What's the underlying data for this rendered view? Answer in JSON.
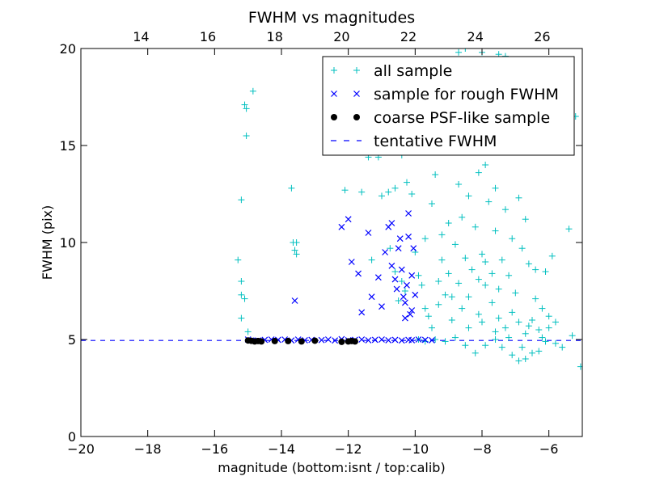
{
  "chart_data": {
    "type": "scatter",
    "title": "FWHM vs magnitudes",
    "xlabel": "magnitude (bottom:isnt / top:calib)",
    "ylabel": "FWHM (pix)",
    "xlim": [
      -20,
      -5
    ],
    "ylim": [
      0,
      20
    ],
    "top_xlim": [
      12.2,
      27.2
    ],
    "x_ticks": [
      -20,
      -18,
      -16,
      -14,
      -12,
      -10,
      -8,
      -6
    ],
    "x_tick_labels": [
      "−20",
      "−18",
      "−16",
      "−14",
      "−12",
      "−10",
      "−8",
      "−6"
    ],
    "top_x_ticks": [
      14,
      16,
      18,
      20,
      22,
      24,
      26
    ],
    "top_x_tick_labels": [
      "14",
      "16",
      "18",
      "20",
      "22",
      "24",
      "26"
    ],
    "y_ticks": [
      0,
      5,
      10,
      15,
      20
    ],
    "y_tick_labels": [
      "0",
      "5",
      "10",
      "15",
      "20"
    ],
    "grid": false,
    "legend_position": "top-right",
    "colors": {
      "all_sample": "#00bfbf",
      "rough_sample": "#0000ff",
      "psf_sample": "#000000",
      "tentative_line": "#0000ff"
    },
    "legend": [
      {
        "key": "all",
        "label": "all sample",
        "marker": "plus"
      },
      {
        "key": "rough",
        "label": "sample for rough FWHM",
        "marker": "x"
      },
      {
        "key": "psf",
        "label": "coarse PSF-like sample",
        "marker": "dot"
      },
      {
        "key": "line",
        "label": "tentative FWHM",
        "marker": "dash"
      }
    ],
    "tentative_fwhm": 4.95,
    "series": [
      {
        "name": "all sample",
        "marker": "plus",
        "points": [
          [
            -15.3,
            9.1
          ],
          [
            -15.2,
            8.0
          ],
          [
            -15.2,
            7.3
          ],
          [
            -15.1,
            7.1
          ],
          [
            -15.2,
            6.1
          ],
          [
            -15.0,
            5.4
          ],
          [
            -15.1,
            17.1
          ],
          [
            -15.05,
            16.9
          ],
          [
            -15.05,
            15.5
          ],
          [
            -14.85,
            17.8
          ],
          [
            -15.2,
            12.2
          ],
          [
            -13.7,
            12.8
          ],
          [
            -13.65,
            10.0
          ],
          [
            -13.55,
            10.0
          ],
          [
            -13.6,
            9.6
          ],
          [
            -13.55,
            9.4
          ],
          [
            -12.1,
            12.7
          ],
          [
            -11.6,
            12.6
          ],
          [
            -11.4,
            14.4
          ],
          [
            -11.3,
            9.1
          ],
          [
            -11.1,
            14.4
          ],
          [
            -11.0,
            12.4
          ],
          [
            -10.8,
            12.6
          ],
          [
            -10.75,
            9.7
          ],
          [
            -10.6,
            12.8
          ],
          [
            -10.4,
            14.5
          ],
          [
            -10.25,
            13.1
          ],
          [
            -10.1,
            12.5
          ],
          [
            -10.4,
            8.0
          ],
          [
            -10.3,
            7.5
          ],
          [
            -10.5,
            7.0
          ],
          [
            -10.6,
            8.5
          ],
          [
            -10.0,
            9.5
          ],
          [
            -9.9,
            8.3
          ],
          [
            -9.8,
            7.8
          ],
          [
            -9.7,
            10.2
          ],
          [
            -9.5,
            12.0
          ],
          [
            -9.4,
            13.5
          ],
          [
            -9.2,
            9.1
          ],
          [
            -9.0,
            11.0
          ],
          [
            -8.8,
            15.2
          ],
          [
            -8.7,
            19.8
          ],
          [
            -8.5,
            20.0
          ],
          [
            -8.3,
            16.5
          ],
          [
            -8.0,
            19.8
          ],
          [
            -7.8,
            16.6
          ],
          [
            -7.6,
            15.5
          ],
          [
            -7.3,
            15.0
          ],
          [
            -7.0,
            14.8
          ],
          [
            -6.6,
            17.6
          ],
          [
            -7.5,
            19.7
          ],
          [
            -7.3,
            19.6
          ],
          [
            -6.9,
            12.3
          ],
          [
            -6.7,
            11.2
          ],
          [
            -6.4,
            8.6
          ],
          [
            -6.1,
            8.5
          ],
          [
            -5.9,
            9.3
          ],
          [
            -5.4,
            10.7
          ],
          [
            -5.2,
            16.5
          ],
          [
            -5.05,
            3.6
          ],
          [
            -5.3,
            5.2
          ],
          [
            -5.6,
            4.6
          ],
          [
            -5.8,
            4.8
          ],
          [
            -6.0,
            5.6
          ],
          [
            -6.2,
            5.1
          ],
          [
            -6.3,
            4.4
          ],
          [
            -6.5,
            4.3
          ],
          [
            -6.7,
            4.0
          ],
          [
            -6.9,
            3.9
          ],
          [
            -7.1,
            4.2
          ],
          [
            -7.4,
            4.6
          ],
          [
            -7.6,
            5.0
          ],
          [
            -7.9,
            4.7
          ],
          [
            -8.2,
            4.3
          ],
          [
            -8.5,
            4.7
          ],
          [
            -8.8,
            5.1
          ],
          [
            -9.1,
            4.9
          ],
          [
            -9.4,
            5.0
          ],
          [
            -9.7,
            4.9
          ],
          [
            -9.9,
            5.0
          ],
          [
            -9.6,
            6.2
          ],
          [
            -9.3,
            6.8
          ],
          [
            -9.1,
            7.3
          ],
          [
            -8.9,
            6.0
          ],
          [
            -8.6,
            6.6
          ],
          [
            -8.4,
            7.2
          ],
          [
            -8.1,
            6.3
          ],
          [
            -7.9,
            7.8
          ],
          [
            -7.7,
            6.9
          ],
          [
            -7.5,
            6.1
          ],
          [
            -7.3,
            5.6
          ],
          [
            -7.1,
            6.4
          ],
          [
            -6.9,
            5.9
          ],
          [
            -6.7,
            5.3
          ],
          [
            -6.5,
            6.0
          ],
          [
            -6.3,
            5.5
          ],
          [
            -6.1,
            4.9
          ],
          [
            -8.8,
            9.9
          ],
          [
            -8.6,
            11.3
          ],
          [
            -8.4,
            12.4
          ],
          [
            -8.2,
            10.8
          ],
          [
            -8.0,
            9.4
          ],
          [
            -7.8,
            12.1
          ],
          [
            -7.6,
            10.6
          ],
          [
            -7.4,
            9.1
          ],
          [
            -7.2,
            8.3
          ],
          [
            -7.0,
            7.4
          ],
          [
            -8.3,
            8.6
          ],
          [
            -8.1,
            8.1
          ],
          [
            -7.9,
            9.0
          ],
          [
            -7.7,
            8.4
          ],
          [
            -7.5,
            7.6
          ],
          [
            -9.0,
            8.4
          ],
          [
            -9.2,
            10.4
          ],
          [
            -8.7,
            7.9
          ],
          [
            -8.5,
            9.2
          ],
          [
            -8.1,
            13.6
          ],
          [
            -7.9,
            14.0
          ],
          [
            -8.3,
            14.7
          ],
          [
            -8.7,
            13.0
          ],
          [
            -7.6,
            12.8
          ],
          [
            -7.3,
            11.7
          ],
          [
            -7.1,
            10.2
          ],
          [
            -6.8,
            9.7
          ],
          [
            -6.6,
            8.9
          ],
          [
            -6.4,
            7.1
          ],
          [
            -6.2,
            6.6
          ],
          [
            -6.0,
            6.2
          ],
          [
            -5.8,
            5.9
          ],
          [
            -8.4,
            5.6
          ],
          [
            -8.0,
            5.9
          ],
          [
            -7.6,
            5.4
          ],
          [
            -7.2,
            5.1
          ],
          [
            -6.8,
            4.6
          ],
          [
            -6.6,
            5.7
          ],
          [
            -9.5,
            5.6
          ],
          [
            -9.7,
            6.6
          ],
          [
            -9.3,
            8.0
          ],
          [
            -8.9,
            7.2
          ]
        ]
      },
      {
        "name": "sample for rough FWHM",
        "marker": "x",
        "points": [
          [
            -15.0,
            5.0
          ],
          [
            -14.9,
            4.95
          ],
          [
            -14.7,
            4.95
          ],
          [
            -14.5,
            4.98
          ],
          [
            -14.3,
            5.0
          ],
          [
            -14.1,
            4.98
          ],
          [
            -13.9,
            5.0
          ],
          [
            -13.7,
            4.95
          ],
          [
            -13.5,
            5.0
          ],
          [
            -13.3,
            4.96
          ],
          [
            -13.1,
            4.98
          ],
          [
            -12.8,
            4.97
          ],
          [
            -12.6,
            5.0
          ],
          [
            -12.4,
            4.95
          ],
          [
            -12.2,
            5.02
          ],
          [
            -12.0,
            4.96
          ],
          [
            -11.8,
            4.98
          ],
          [
            -11.6,
            5.0
          ],
          [
            -11.4,
            4.96
          ],
          [
            -11.2,
            4.98
          ],
          [
            -11.0,
            5.0
          ],
          [
            -10.8,
            4.96
          ],
          [
            -10.6,
            4.98
          ],
          [
            -10.4,
            4.95
          ],
          [
            -10.2,
            4.98
          ],
          [
            -10.1,
            4.96
          ],
          [
            -9.9,
            5.0
          ],
          [
            -9.7,
            4.98
          ],
          [
            -9.5,
            4.96
          ],
          [
            -13.6,
            7.0
          ],
          [
            -12.2,
            10.8
          ],
          [
            -11.9,
            9.0
          ],
          [
            -11.7,
            8.4
          ],
          [
            -11.4,
            10.5
          ],
          [
            -11.1,
            8.2
          ],
          [
            -11.0,
            6.7
          ],
          [
            -10.8,
            10.8
          ],
          [
            -10.7,
            11.0
          ],
          [
            -10.6,
            8.1
          ],
          [
            -10.5,
            9.7
          ],
          [
            -10.4,
            8.6
          ],
          [
            -10.35,
            7.2
          ],
          [
            -10.3,
            6.9
          ],
          [
            -10.2,
            11.5
          ],
          [
            -10.2,
            10.3
          ],
          [
            -10.1,
            8.3
          ],
          [
            -10.05,
            9.7
          ],
          [
            -10.0,
            7.3
          ],
          [
            -10.1,
            6.5
          ],
          [
            -10.3,
            6.1
          ],
          [
            -11.3,
            7.2
          ],
          [
            -11.6,
            6.4
          ],
          [
            -12.0,
            11.2
          ],
          [
            -10.9,
            9.5
          ],
          [
            -10.55,
            7.6
          ],
          [
            -10.15,
            6.3
          ],
          [
            -10.25,
            7.8
          ],
          [
            -10.45,
            10.2
          ],
          [
            -10.7,
            8.8
          ]
        ]
      },
      {
        "name": "coarse PSF-like sample",
        "marker": "dot",
        "points": [
          [
            -15.0,
            4.95
          ],
          [
            -14.9,
            4.93
          ],
          [
            -14.8,
            4.9
          ],
          [
            -14.7,
            4.92
          ],
          [
            -14.6,
            4.9
          ],
          [
            -14.2,
            4.92
          ],
          [
            -13.8,
            4.92
          ],
          [
            -13.4,
            4.9
          ],
          [
            -13.0,
            4.94
          ],
          [
            -12.2,
            4.88
          ],
          [
            -12.0,
            4.9
          ],
          [
            -11.9,
            4.92
          ],
          [
            -11.8,
            4.9
          ]
        ]
      }
    ]
  }
}
